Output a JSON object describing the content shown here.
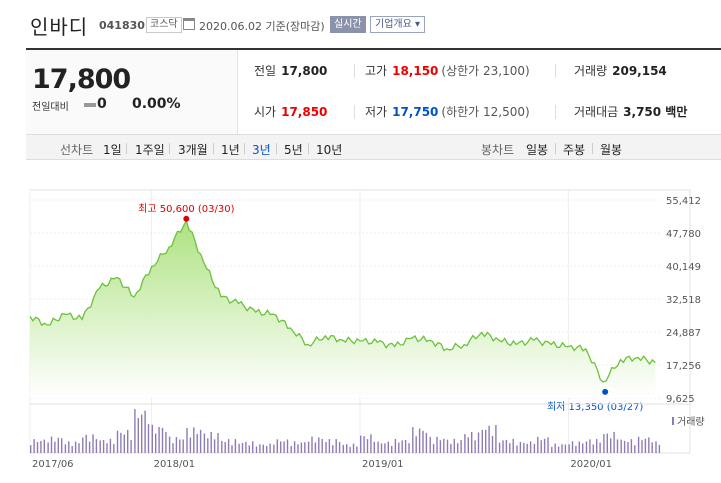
{
  "header": {
    "stock_name": "인바디",
    "stock_code": "041830",
    "market": "코스닥",
    "base_date": "2020.06.02 기준(장마감)",
    "realtime_label": "실시간",
    "company_info_label": "기업개요 ▾"
  },
  "quote": {
    "price": "17,800",
    "diff_label": "전일대비",
    "diff_value": "0",
    "diff_rate": "0.00%",
    "prev_close_label": "전일",
    "prev_close": "17,800",
    "high_label": "고가",
    "high": "18,150",
    "upper_limit": "(상한가 23,100)",
    "volume_label": "거래량",
    "volume": "209,154",
    "open_label": "시가",
    "open": "17,850",
    "low_label": "저가",
    "low": "17,750",
    "lower_limit": "(하한가 12,500)",
    "amount_label": "거래대금",
    "amount": "3,750 백만"
  },
  "tabs": {
    "line_label": "선차트",
    "line_periods": [
      "1일",
      "1주일",
      "3개월",
      "1년",
      "3년",
      "5년",
      "10년"
    ],
    "active_period": "3년",
    "candle_label": "봉차트",
    "candle_periods": [
      "일봉",
      "주봉",
      "월봉"
    ]
  },
  "colors": {
    "up": "#e00000",
    "down": "#0052cc",
    "line": "#6bc23a",
    "fill": "#c8eea6",
    "volume": "#8e7bb5"
  },
  "chart_data": {
    "type": "area",
    "x_ticks": [
      "2017/06",
      "2018/01",
      "2019/01",
      "2020/01"
    ],
    "y_ticks": [
      55412,
      47780,
      40149,
      32518,
      24887,
      17256,
      9625
    ],
    "ylim": [
      9625,
      55412
    ],
    "volume_legend": "거래량",
    "max_annotation": "최고 50,600 (03/30)",
    "min_annotation": "최저 13,350 (03/27)",
    "series": [
      {
        "x": [
          "2017/06",
          "2017/07",
          "2017/08",
          "2017/09",
          "2017/10",
          "2017/11",
          "2017/12",
          "2018/01",
          "2018/02",
          "2018/03",
          "2018/04",
          "2018/05",
          "2018/06",
          "2018/07",
          "2018/08",
          "2018/09",
          "2018/10",
          "2018/11",
          "2018/12",
          "2019/01",
          "2019/02",
          "2019/03",
          "2019/04",
          "2019/05",
          "2019/06",
          "2019/07",
          "2019/08",
          "2019/09",
          "2019/10",
          "2019/11",
          "2019/12",
          "2020/01",
          "2020/02",
          "2020/03",
          "2020/04",
          "2020/05",
          "2020/06"
        ],
        "values": [
          28500,
          26500,
          29000,
          27800,
          35000,
          37500,
          33000,
          40000,
          44500,
          50600,
          41000,
          33000,
          31500,
          29500,
          29000,
          25800,
          22000,
          24000,
          23000,
          22800,
          22500,
          21500,
          23500,
          23000,
          21000,
          22000,
          24800,
          23000,
          22000,
          23000,
          22000,
          21500,
          21000,
          13350,
          18500,
          19000,
          17800
        ]
      }
    ],
    "volume": {
      "x": [
        "2017/06",
        "2017/07",
        "2017/08",
        "2017/09",
        "2017/10",
        "2017/11",
        "2017/12",
        "2018/01",
        "2018/02",
        "2018/03",
        "2018/04",
        "2018/05",
        "2018/06",
        "2018/07",
        "2018/08",
        "2018/09",
        "2018/10",
        "2018/11",
        "2018/12",
        "2019/01",
        "2019/02",
        "2019/03",
        "2019/04",
        "2019/05",
        "2019/06",
        "2019/07",
        "2019/08",
        "2019/09",
        "2019/10",
        "2019/11",
        "2019/12",
        "2020/01",
        "2020/02",
        "2020/03",
        "2020/04",
        "2020/05",
        "2020/06"
      ],
      "values": [
        0.3,
        0.35,
        0.25,
        0.4,
        0.3,
        0.5,
        0.95,
        0.6,
        0.35,
        0.55,
        0.45,
        0.3,
        0.25,
        0.2,
        0.3,
        0.25,
        0.35,
        0.3,
        0.2,
        0.4,
        0.25,
        0.3,
        0.55,
        0.35,
        0.3,
        0.45,
        0.6,
        0.3,
        0.25,
        0.35,
        0.2,
        0.25,
        0.3,
        0.45,
        0.3,
        0.35,
        0.25
      ]
    }
  }
}
